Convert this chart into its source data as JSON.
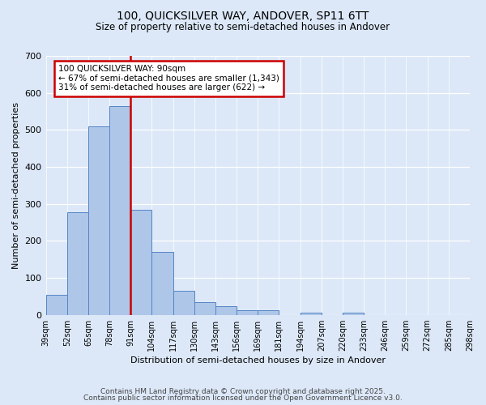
{
  "title1": "100, QUICKSILVER WAY, ANDOVER, SP11 6TT",
  "title2": "Size of property relative to semi-detached houses in Andover",
  "xlabel": "Distribution of semi-detached houses by size in Andover",
  "ylabel": "Number of semi-detached properties",
  "bins": [
    "39sqm",
    "52sqm",
    "65sqm",
    "78sqm",
    "91sqm",
    "104sqm",
    "117sqm",
    "130sqm",
    "143sqm",
    "156sqm",
    "169sqm",
    "181sqm",
    "194sqm",
    "207sqm",
    "220sqm",
    "233sqm",
    "246sqm",
    "259sqm",
    "272sqm",
    "285sqm",
    "298sqm"
  ],
  "values": [
    54,
    277,
    510,
    565,
    283,
    170,
    65,
    35,
    23,
    12,
    12,
    0,
    6,
    0,
    5,
    0,
    0,
    0,
    0,
    0
  ],
  "bar_color": "#aec6e8",
  "bar_edge_color": "#5585c5",
  "red_line_bin_index": 4,
  "annotation_text": "100 QUICKSILVER WAY: 90sqm\n← 67% of semi-detached houses are smaller (1,343)\n31% of semi-detached houses are larger (622) →",
  "annotation_box_edge": "#cc0000",
  "vline_color": "#cc0000",
  "ylim": [
    0,
    700
  ],
  "yticks": [
    0,
    100,
    200,
    300,
    400,
    500,
    600,
    700
  ],
  "footer1": "Contains HM Land Registry data © Crown copyright and database right 2025.",
  "footer2": "Contains public sector information licensed under the Open Government Licence v3.0.",
  "plot_bg_color": "#dce8f8",
  "fig_bg_color": "#dce8f8"
}
